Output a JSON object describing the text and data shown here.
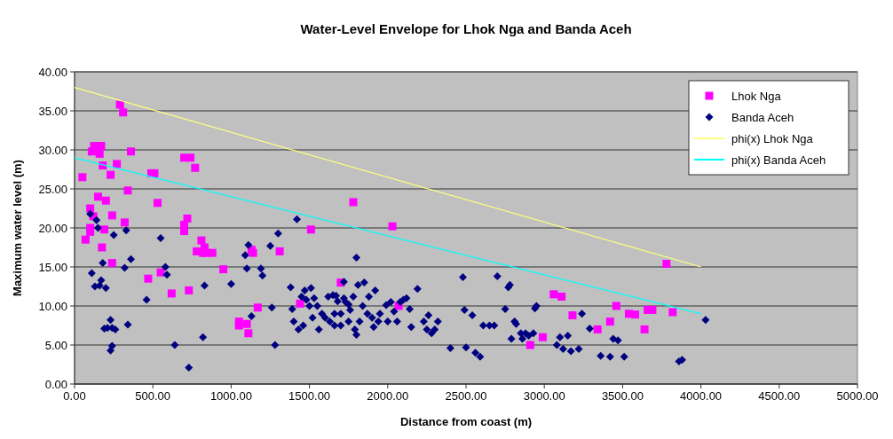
{
  "chart_data": {
    "type": "scatter",
    "title": "Water-Level Envelope for Lhok Nga and Banda Aceh",
    "xlabel": "Distance from coast (m)",
    "ylabel": "Maximum water level (m)",
    "xlim": [
      0,
      5000
    ],
    "ylim": [
      0,
      40
    ],
    "xticks": [
      {
        "value": 0,
        "label": "0.00"
      },
      {
        "value": 500,
        "label": "500.00"
      },
      {
        "value": 1000,
        "label": "1000.00"
      },
      {
        "value": 1500,
        "label": "1500.00"
      },
      {
        "value": 2000,
        "label": "2000.00"
      },
      {
        "value": 2500,
        "label": "2500.00"
      },
      {
        "value": 3000,
        "label": "3000.00"
      },
      {
        "value": 3500,
        "label": "3500.00"
      },
      {
        "value": 4000,
        "label": "4000.00"
      },
      {
        "value": 4500,
        "label": "4500.00"
      },
      {
        "value": 5000,
        "label": "5000.00"
      }
    ],
    "yticks": [
      {
        "value": 0,
        "label": "0.00"
      },
      {
        "value": 5,
        "label": "5.00"
      },
      {
        "value": 10,
        "label": "10.00"
      },
      {
        "value": 15,
        "label": "15.00"
      },
      {
        "value": 20,
        "label": "20.00"
      },
      {
        "value": 25,
        "label": "25.00"
      },
      {
        "value": 30,
        "label": "30.00"
      },
      {
        "value": 35,
        "label": "35.00"
      },
      {
        "value": 40,
        "label": "40.00"
      }
    ],
    "grid": "y",
    "legend": "top right",
    "series": [
      {
        "name": "Lhok Nga",
        "type": "scatter",
        "marker": "square",
        "color": "#ff00ff",
        "x": [
          50,
          70,
          100,
          100,
          100,
          110,
          120,
          125,
          150,
          155,
          160,
          170,
          175,
          180,
          190,
          200,
          230,
          240,
          240,
          270,
          290,
          310,
          320,
          340,
          360,
          470,
          490,
          510,
          530,
          550,
          620,
          700,
          700,
          700,
          720,
          730,
          740,
          770,
          780,
          810,
          820,
          830,
          840,
          880,
          950,
          1050,
          1050,
          1100,
          1110,
          1130,
          1140,
          1170,
          1310,
          1440,
          1510,
          1700,
          1780,
          2030,
          2070,
          2910,
          2990,
          3060,
          3110,
          3180,
          3340,
          3420,
          3460,
          3540,
          3580,
          3640,
          3660,
          3690,
          3780,
          3820
        ],
        "values": [
          26.5,
          18.5,
          20,
          19.5,
          22.5,
          29.8,
          21.5,
          30.5,
          24,
          30.5,
          29.5,
          30.5,
          17.5,
          28,
          19.8,
          23.5,
          26.8,
          21.6,
          15.5,
          28.2,
          35.8,
          34.8,
          20.7,
          24.8,
          29.8,
          13.5,
          27,
          27,
          23.2,
          14.3,
          11.6,
          19.6,
          20.4,
          29,
          21.2,
          12,
          29,
          27.7,
          17,
          18.4,
          16.8,
          17.5,
          16.8,
          16.8,
          14.7,
          7.5,
          8,
          7.7,
          6.5,
          17.2,
          16.8,
          9.8,
          17,
          10.3,
          19.8,
          13,
          23.3,
          20.2,
          10,
          5,
          6,
          11.5,
          11.2,
          8.8,
          7,
          8,
          10,
          9,
          8.9,
          7,
          9.5,
          9.5,
          15.4,
          9.2
        ]
      },
      {
        "name": "Banda Aceh",
        "type": "scatter",
        "marker": "diamond",
        "color": "#000080",
        "x": [
          100,
          110,
          130,
          140,
          150,
          160,
          170,
          180,
          190,
          200,
          210,
          230,
          230,
          240,
          240,
          250,
          260,
          320,
          330,
          340,
          360,
          460,
          550,
          580,
          590,
          640,
          730,
          820,
          830,
          1000,
          1090,
          1100,
          1110,
          1130,
          1190,
          1200,
          1250,
          1260,
          1300,
          1280,
          1380,
          1390,
          1420,
          1400,
          1430,
          1450,
          1460,
          1470,
          1480,
          1500,
          1510,
          1520,
          1530,
          1550,
          1560,
          1580,
          1600,
          1620,
          1630,
          1650,
          1660,
          1660,
          1670,
          1680,
          1700,
          1700,
          1720,
          1720,
          1730,
          1750,
          1750,
          1760,
          1780,
          1790,
          1800,
          1800,
          1810,
          1820,
          1840,
          1850,
          1870,
          1880,
          1900,
          1910,
          1920,
          1940,
          1950,
          1990,
          2000,
          2020,
          2040,
          2060,
          2080,
          2100,
          2120,
          2140,
          2150,
          2190,
          2230,
          2250,
          2260,
          2280,
          2300,
          2320,
          2400,
          2480,
          2490,
          2500,
          2540,
          2560,
          2590,
          2610,
          2650,
          2680,
          2700,
          2750,
          2770,
          2780,
          2790,
          2810,
          2820,
          2850,
          2860,
          2880,
          2900,
          2930,
          2940,
          2950,
          3080,
          3100,
          3120,
          3150,
          3170,
          3220,
          3240,
          3290,
          3360,
          3420,
          3440,
          3470,
          3510,
          3860,
          3880,
          4030
        ],
        "values": [
          21.8,
          14.2,
          12.5,
          21,
          20,
          12.6,
          13.3,
          15.5,
          7.1,
          12.3,
          7.2,
          8.2,
          4.3,
          4.9,
          7.2,
          19.1,
          7,
          14.9,
          19.7,
          7.6,
          16,
          10.8,
          18.7,
          15,
          14,
          5,
          2.1,
          6,
          12.6,
          12.8,
          16.5,
          14.8,
          17.8,
          8.7,
          14.8,
          13.9,
          17.7,
          9.8,
          19.3,
          5,
          12.4,
          9.6,
          21.1,
          8,
          7,
          11.2,
          7.5,
          12,
          10.8,
          10,
          12.3,
          8.5,
          11,
          10,
          7,
          9,
          8.5,
          11.2,
          8,
          11.4,
          9,
          7.5,
          11.3,
          10.6,
          9,
          7.5,
          11,
          13.1,
          10.5,
          10.2,
          8,
          9.5,
          11.2,
          7,
          16.2,
          6.3,
          12.7,
          8,
          10,
          13,
          9,
          11.2,
          8.5,
          7.3,
          12,
          8,
          9,
          10.1,
          8,
          10.5,
          9.3,
          8,
          10.5,
          10.8,
          11,
          9.6,
          7.3,
          12.2,
          8,
          7,
          8.8,
          6.5,
          7,
          8,
          4.6,
          13.7,
          9.5,
          4.7,
          8.8,
          4,
          3.5,
          7.5,
          7.5,
          7.5,
          13.8,
          9.6,
          12.4,
          12.7,
          5.8,
          8,
          7.7,
          6.5,
          5.8,
          6.5,
          6.2,
          6.5,
          9.7,
          10,
          5,
          6,
          4.5,
          6.2,
          4.2,
          4.5,
          9,
          7.1,
          3.6,
          3.5,
          5.8,
          5.6,
          3.5,
          2.9,
          3.1,
          8.2
        ]
      },
      {
        "name": "phi(x) Lhok Nga",
        "type": "line",
        "marker": "none",
        "line_style": "solid",
        "color": "#ffff80",
        "x": [
          0,
          4000
        ],
        "values": [
          38,
          15
        ]
      },
      {
        "name": "phi(x) Banda Aceh",
        "type": "line",
        "marker": "none",
        "line_style": "solid",
        "color": "#00ffff",
        "x": [
          0,
          4000
        ],
        "values": [
          29,
          9
        ]
      }
    ]
  }
}
